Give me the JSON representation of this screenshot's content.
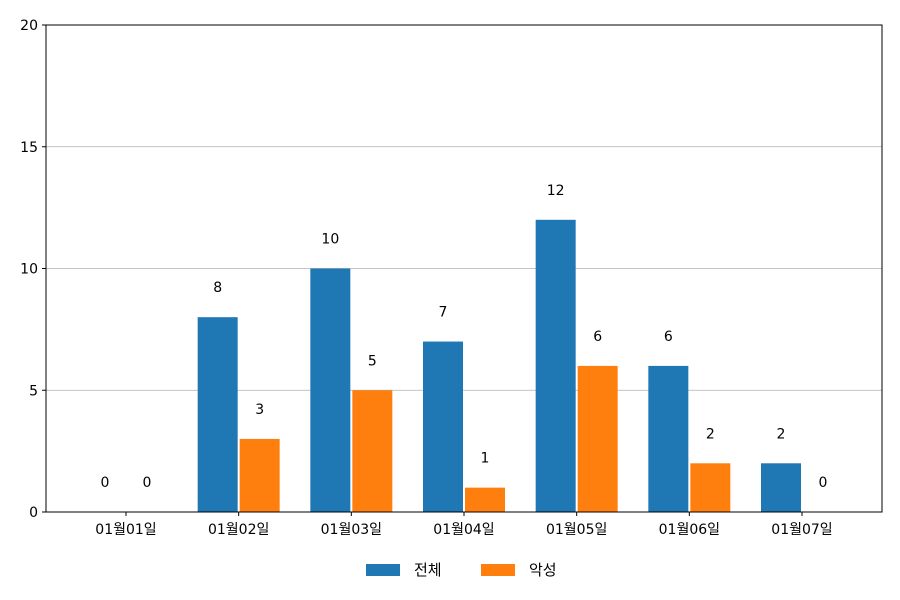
{
  "chart_data": {
    "type": "bar",
    "categories": [
      "01월01일",
      "01월02일",
      "01월03일",
      "01월04일",
      "01월05일",
      "01월06일",
      "01월07일"
    ],
    "series": [
      {
        "name": "전체",
        "values": [
          0,
          8,
          10,
          7,
          12,
          6,
          2
        ],
        "color": "#1f77b4"
      },
      {
        "name": "악성",
        "values": [
          0,
          3,
          5,
          1,
          6,
          2,
          0
        ],
        "color": "#ff7f0e"
      }
    ],
    "ylim": [
      0,
      20
    ],
    "yticks": [
      0,
      5,
      10,
      15,
      20
    ],
    "grid": "horizontal",
    "legend": "bottom-center",
    "data_labels": true
  }
}
